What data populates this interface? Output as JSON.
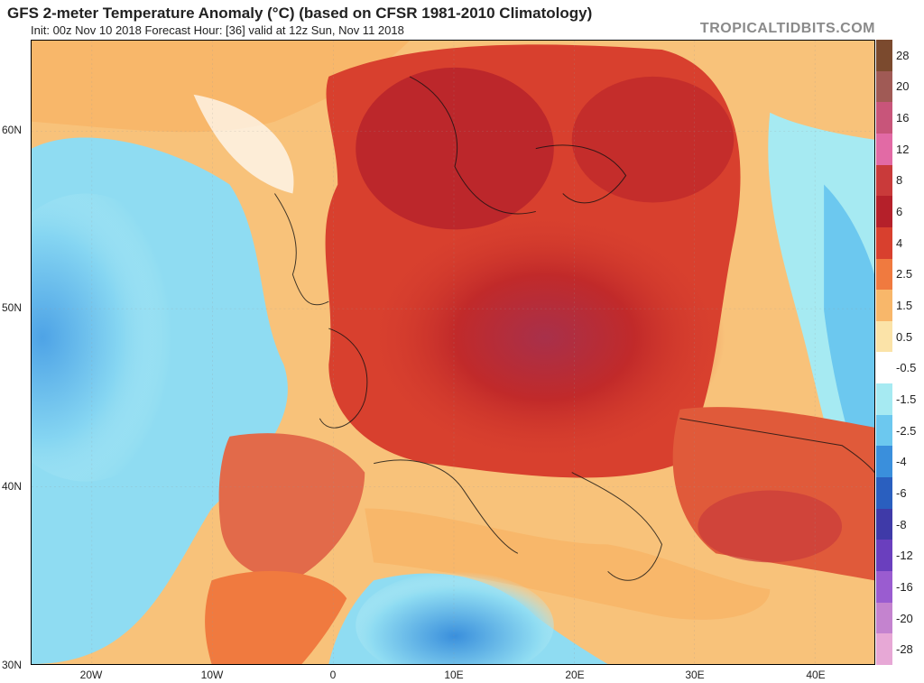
{
  "header": {
    "title": "GFS 2-meter Temperature Anomaly (°C) (based on CFSR 1981-2010 Climatology)",
    "subtitle": "Init: 00z Nov 10 2018   Forecast Hour: [36]   valid at 12z Sun, Nov 11 2018",
    "brand": "TROPICALTIDBITS.COM"
  },
  "axes": {
    "lat_labels": [
      "60N",
      "50N",
      "40N",
      "30N"
    ],
    "lon_labels": [
      "20W",
      "10W",
      "0",
      "10E",
      "20E",
      "30E",
      "40E"
    ]
  },
  "colorbar": {
    "labels": [
      "28",
      "20",
      "16",
      "12",
      "8",
      "6",
      "4",
      "2.5",
      "1.5",
      "0.5",
      "-0.5",
      "-1.5",
      "-2.5",
      "-4",
      "-6",
      "-8",
      "-12",
      "-16",
      "-20",
      "-28"
    ],
    "colors": [
      "#7b4a2e",
      "#a05a55",
      "#c8557a",
      "#e26aa5",
      "#c93a3a",
      "#b5202a",
      "#d8402e",
      "#f07a3f",
      "#f8b76a",
      "#fbe3a8",
      "#ffffff",
      "#a6eaf2",
      "#6cc8ef",
      "#3a8fdc",
      "#2a5fbf",
      "#3f3aa8",
      "#6a3fbe",
      "#9a5cd0",
      "#c483cf",
      "#e7a8d6"
    ]
  },
  "map": {
    "projection": "lat-lon",
    "lat_range": [
      30,
      65
    ],
    "lon_range": [
      -25,
      45
    ],
    "regions": [
      "ocean-cold-atlantic",
      "europe-warm",
      "central-europe-hot",
      "north-africa-cool",
      "russia-cold",
      "turkey-warm"
    ]
  }
}
